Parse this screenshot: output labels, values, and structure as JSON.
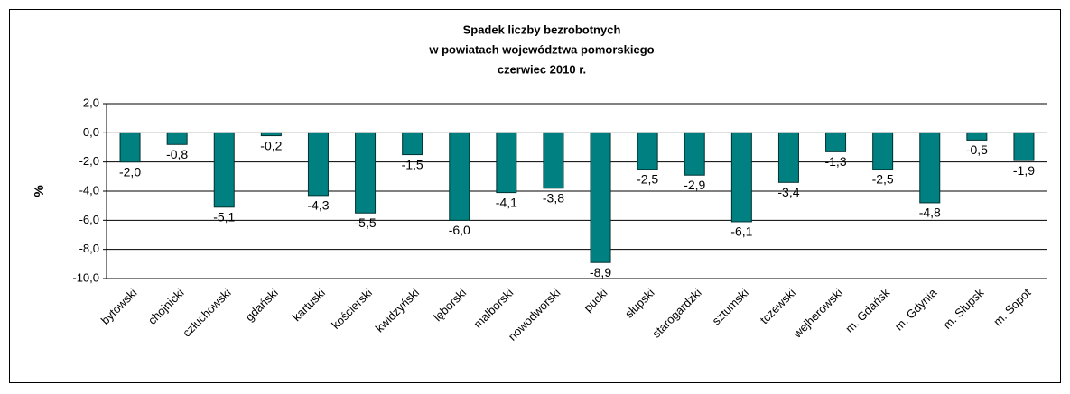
{
  "chart_data": {
    "type": "bar",
    "title": [
      "Spadek liczby bezrobotnych",
      "w powiatach województwa pomorskiego",
      "czerwiec 2010 r."
    ],
    "y_label": "%",
    "categories": [
      "bytowski",
      "chojnicki",
      "człuchowski",
      "gdański",
      "kartuski",
      "kościerski",
      "kwidzyński",
      "lęborski",
      "malborski",
      "nowodworski",
      "pucki",
      "słupski",
      "starogardzki",
      "sztumski",
      "tczewski",
      "wejherowski",
      "m. Gdańsk",
      "m. Gdynia",
      "m. Słupsk",
      "m. Sopot"
    ],
    "values": [
      -2.0,
      -0.8,
      -5.1,
      -0.2,
      -4.3,
      -5.5,
      -1.5,
      -6.0,
      -4.1,
      -3.8,
      -8.9,
      -2.5,
      -2.9,
      -6.1,
      -3.4,
      -1.3,
      -2.5,
      -4.8,
      -0.5,
      -1.9
    ],
    "value_labels": [
      "-2,0",
      "-0,8",
      "-5,1",
      "-0,2",
      "-4,3",
      "-5,5",
      "-1,5",
      "-6,0",
      "-4,1",
      "-3,8",
      "-8,9",
      "-2,5",
      "-2,9",
      "-6,1",
      "-3,4",
      "-1,3",
      "-2,5",
      "-4,8",
      "-0,5",
      "-1,9"
    ],
    "color": "#008080",
    "ylim": [
      -10,
      2
    ],
    "yticks": [
      {
        "value": 2,
        "label": "2,0"
      },
      {
        "value": 0,
        "label": "0,0"
      },
      {
        "value": -2,
        "label": "-2,0"
      },
      {
        "value": -4,
        "label": "-4,0"
      },
      {
        "value": -6,
        "label": "-6,0"
      },
      {
        "value": -8,
        "label": "-8,0"
      },
      {
        "value": -10,
        "label": "-10,0"
      }
    ],
    "grid": true
  }
}
